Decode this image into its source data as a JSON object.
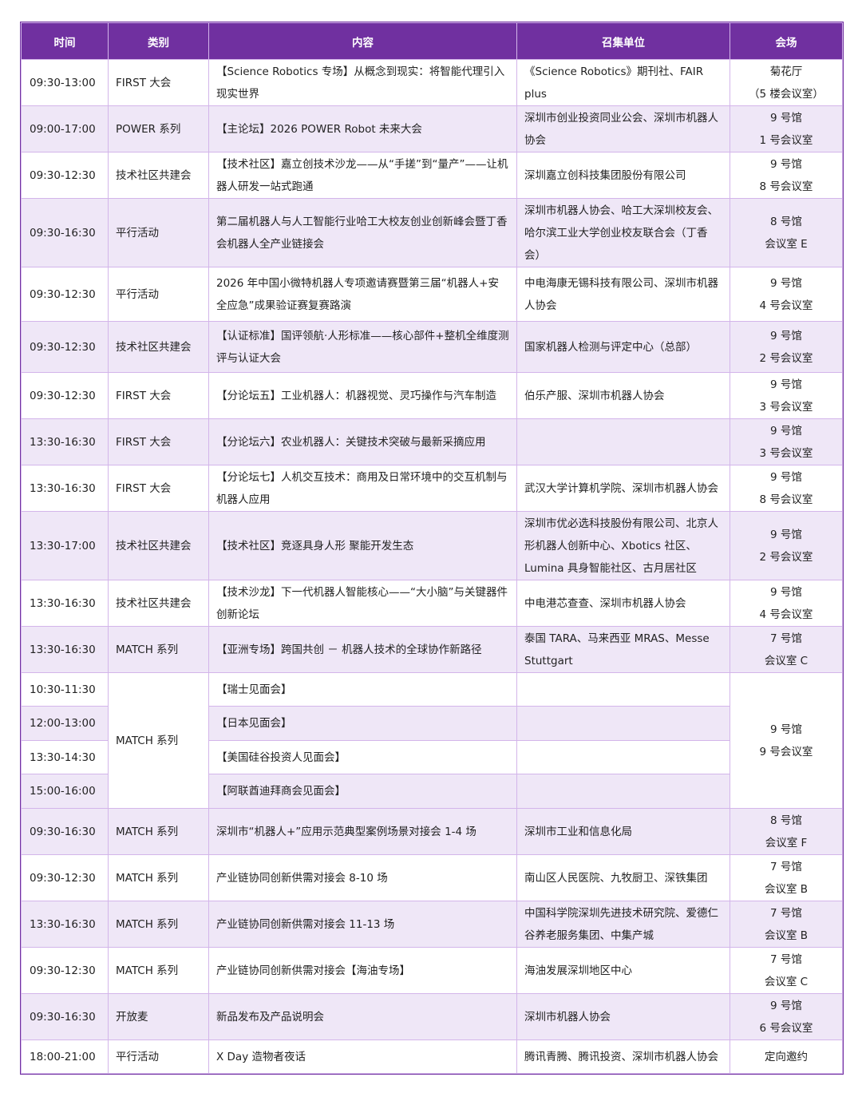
{
  "header": {
    "time": "时间",
    "category": "类别",
    "content": "内容",
    "organizer": "召集单位",
    "venue": "会场"
  },
  "colors": {
    "header_bg": "#7030a0",
    "alt_row": "#efe7f7",
    "border": "#d3b5ea"
  },
  "rows": [
    {
      "time": "09:30-13:00",
      "category": "FIRST 大会",
      "content": "【Science Robotics 专场】从概念到现实：将智能代理引入现实世界",
      "organizer": "《Science Robotics》期刊社、FAIR plus",
      "venue": "菊花厅\n（5 楼会议室）"
    },
    {
      "time": "09:00-17:00",
      "category": "POWER 系列",
      "content": "【主论坛】2026 POWER Robot 未来大会",
      "organizer": "深圳市创业投资同业公会、深圳市机器人协会",
      "venue": "9 号馆\n1 号会议室"
    },
    {
      "time": "09:30-12:30",
      "category": "技术社区共建会",
      "content": "【技术社区】嘉立创技术沙龙——从“手搓”到“量产”——让机器人研发一站式跑通",
      "organizer": "深圳嘉立创科技集团股份有限公司",
      "venue": "9 号馆\n8 号会议室"
    },
    {
      "time": "09:30-16:30",
      "category": "平行活动",
      "content": "第二届机器人与人工智能行业哈工大校友创业创新峰会暨丁香会机器人全产业链接会",
      "organizer": "深圳市机器人协会、哈工大深圳校友会、哈尔滨工业大学创业校友联合会（丁香会）",
      "venue": "8 号馆\n会议室 E"
    },
    {
      "time": "09:30-12:30",
      "category": "平行活动",
      "content": "2026 年中国小微特机器人专项邀请赛暨第三届“机器人+安全应急”成果验证赛复赛路演",
      "organizer": "中电海康无锡科技有限公司、深圳市机器人协会",
      "venue": "9 号馆\n4 号会议室"
    },
    {
      "time": "09:30-12:30",
      "category": "技术社区共建会",
      "content": "【认证标准】国评领航·人形标准——核心部件+整机全维度测评与认证大会",
      "organizer": "国家机器人检测与评定中心（总部）",
      "venue": "9 号馆\n2 号会议室"
    },
    {
      "time": "09:30-12:30",
      "category": "FIRST 大会",
      "content": "【分论坛五】工业机器人：机器视觉、灵巧操作与汽车制造",
      "organizer": "伯乐产服、深圳市机器人协会",
      "venue": "9 号馆\n3 号会议室"
    },
    {
      "time": "13:30-16:30",
      "category": "FIRST 大会",
      "content": "【分论坛六】农业机器人：关键技术突破与最新采摘应用",
      "organizer": "",
      "venue": "9 号馆\n3 号会议室"
    },
    {
      "time": "13:30-16:30",
      "category": "FIRST 大会",
      "content": "【分论坛七】人机交互技术：商用及日常环境中的交互机制与机器人应用",
      "organizer": "武汉大学计算机学院、深圳市机器人协会",
      "venue": "9 号馆\n8 号会议室"
    },
    {
      "time": "13:30-17:00",
      "category": "技术社区共建会",
      "content": "【技术社区】竞逐具身人形  聚能开发生态",
      "organizer": "深圳市优必选科技股份有限公司、北京人形机器人创新中心、Xbotics 社区、Lumina 具身智能社区、古月居社区",
      "venue": "9 号馆\n2 号会议室"
    },
    {
      "time": "13:30-16:30",
      "category": "技术社区共建会",
      "content": "【技术沙龙】下一代机器人智能核心——“大小脑”与关键器件创新论坛",
      "organizer": "中电港芯查查、深圳市机器人协会",
      "venue": "9 号馆\n4 号会议室"
    },
    {
      "time": "13:30-16:30",
      "category": "MATCH 系列",
      "content": "【亚洲专场】跨国共创 － 机器人技术的全球协作新路径",
      "organizer": "泰国 TARA、马来西亚 MRAS、Messe Stuttgart",
      "venue": "7 号馆\n会议室 C"
    }
  ],
  "group": {
    "category": "MATCH 系列",
    "venue": "9 号馆\n9 号会议室",
    "sessions": [
      {
        "time": "10:30-11:30",
        "content": "【瑞士见面会】",
        "organizer": ""
      },
      {
        "time": "12:00-13:00",
        "content": "【日本见面会】",
        "organizer": ""
      },
      {
        "time": "13:30-14:30",
        "content": "【美国硅谷投资人见面会】",
        "organizer": ""
      },
      {
        "time": "15:00-16:00",
        "content": "【阿联酋迪拜商会见面会】",
        "organizer": ""
      }
    ]
  },
  "rows2": [
    {
      "time": "09:30-16:30",
      "category": "MATCH 系列",
      "content": "深圳市“机器人+”应用示范典型案例场景对接会 1-4 场",
      "organizer": "深圳市工业和信息化局",
      "venue": "8 号馆\n会议室 F"
    },
    {
      "time": "09:30-12:30",
      "category": "MATCH 系列",
      "content": "产业链协同创新供需对接会 8-10 场",
      "organizer": "南山区人民医院、九牧厨卫、深铁集团",
      "venue": "7 号馆\n会议室 B"
    },
    {
      "time": "13:30-16:30",
      "category": "MATCH 系列",
      "content": "产业链协同创新供需对接会 11-13 场",
      "organizer": "中国科学院深圳先进技术研究院、爱德仁谷养老服务集团、中集产城",
      "venue": "7 号馆\n会议室 B"
    },
    {
      "time": "09:30-12:30",
      "category": "MATCH 系列",
      "content": "产业链协同创新供需对接会【海油专场】",
      "organizer": "海油发展深圳地区中心",
      "venue": "7 号馆\n会议室 C"
    },
    {
      "time": "09:30-16:30",
      "category": "开放麦",
      "content": "新品发布及产品说明会",
      "organizer": "深圳市机器人协会",
      "venue": "9 号馆\n6 号会议室"
    },
    {
      "time": "18:00-21:00",
      "category": "平行活动",
      "content": "X Day 造物者夜话",
      "organizer": "腾讯青腾、腾讯投资、深圳市机器人协会",
      "venue": "定向邀约"
    }
  ]
}
